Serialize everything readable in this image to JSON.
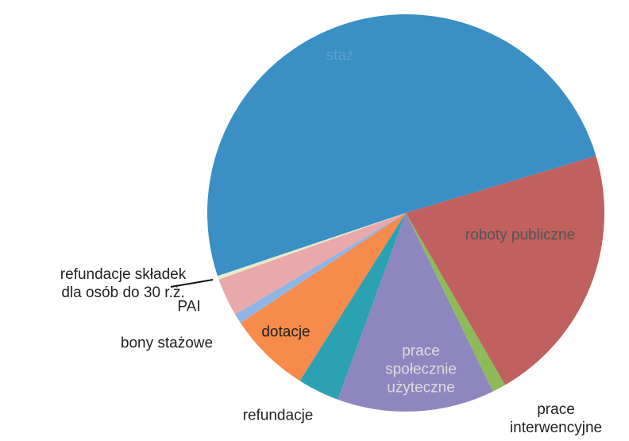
{
  "chart_data": {
    "type": "pie",
    "categories": [
      "roboty publiczne",
      "prace interwencyjne",
      "prace społecznie użyteczne",
      "refundacje",
      "dotacje",
      "bony stażowe",
      "PAI",
      "refundacje składek dla osób do 30 r.ż.",
      "staż"
    ],
    "values": [
      21.3,
      1.1,
      12.8,
      3.4,
      6.7,
      0.8,
      3.1,
      0.3,
      50.5
    ],
    "colors": [
      "#c0615f",
      "#8dbb59",
      "#8e86be",
      "#2ba1b1",
      "#f68b4b",
      "#8fb5e6",
      "#e9a8a9",
      "#e4edc8",
      "#3a8fc4"
    ]
  }
}
